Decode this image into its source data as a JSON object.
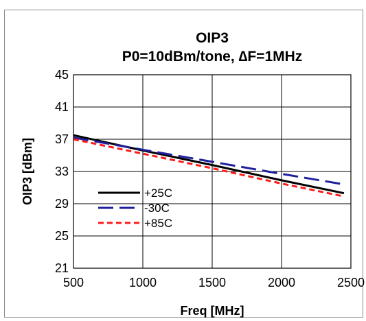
{
  "chart_data": {
    "type": "line",
    "title": "OIP3",
    "subtitle": "P0=10dBm/tone, ∆F=1MHz",
    "xlabel": "Freq [MHz]",
    "ylabel": "OIP3 [dBm]",
    "xlim": [
      500,
      2500
    ],
    "ylim": [
      21,
      45
    ],
    "xticks": [
      500,
      1000,
      1500,
      2000,
      2500
    ],
    "yticks": [
      45,
      41,
      37,
      33,
      29,
      25,
      21
    ],
    "grid": true,
    "legend_position": "lower-left",
    "series": [
      {
        "name": "+25C",
        "color": "#000000",
        "style": "solid",
        "x": [
          500,
          1000,
          1500,
          2000,
          2450
        ],
        "y": [
          37.5,
          35.6,
          33.8,
          31.9,
          30.3
        ]
      },
      {
        "name": "-30C",
        "color": "#1f1f9e",
        "style": "long-dash",
        "x": [
          500,
          1000,
          1500,
          2000,
          2450
        ],
        "y": [
          37.2,
          35.7,
          34.2,
          32.7,
          31.4
        ]
      },
      {
        "name": "+85C",
        "color": "#ff1a1a",
        "style": "short-dash",
        "x": [
          500,
          1000,
          1500,
          2000,
          2450
        ],
        "y": [
          37.0,
          35.2,
          33.4,
          31.5,
          29.9
        ]
      }
    ]
  }
}
